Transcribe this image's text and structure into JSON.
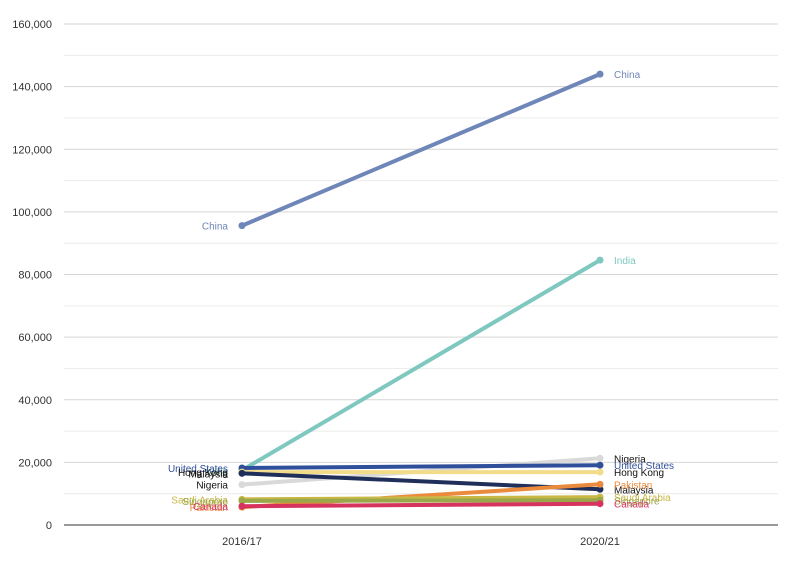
{
  "chart_data": {
    "type": "line",
    "title": "",
    "xlabel": "",
    "ylabel": "",
    "categories": [
      "2016/17",
      "2020/21"
    ],
    "ylim": [
      0,
      160000
    ],
    "yticks": [
      0,
      20000,
      40000,
      60000,
      80000,
      100000,
      120000,
      140000,
      160000
    ],
    "ytick_labels": [
      "0",
      "20,000",
      "40,000",
      "60,000",
      "80,000",
      "100,000",
      "120,000",
      "140,000",
      "160,000"
    ],
    "grid": true,
    "legend": "none",
    "series": [
      {
        "name": "China",
        "values": [
          95600,
          144000
        ],
        "color": "#6f86b8"
      },
      {
        "name": "India",
        "values": [
          17500,
          84600
        ],
        "color": "#7ec8c0"
      },
      {
        "name": "Nigeria",
        "values": [
          12900,
          21300
        ],
        "color": "#d9d9d9"
      },
      {
        "name": "United States",
        "values": [
          18200,
          19100
        ],
        "color": "#2f4f9a"
      },
      {
        "name": "Hong Kong",
        "values": [
          16900,
          16900
        ],
        "color": "#f2dc8a"
      },
      {
        "name": "Malaysia",
        "values": [
          16500,
          11400
        ],
        "color": "#1f2f5a"
      },
      {
        "name": "Pakistan",
        "values": [
          5700,
          13000
        ],
        "color": "#ea8a3c"
      },
      {
        "name": "Saudi Arabia",
        "values": [
          8200,
          8900
        ],
        "color": "#c9b846"
      },
      {
        "name": "Singapore",
        "values": [
          7700,
          7900
        ],
        "color": "#9aa84a"
      },
      {
        "name": "Canada",
        "values": [
          6000,
          6800
        ],
        "color": "#d6335e"
      }
    ]
  }
}
